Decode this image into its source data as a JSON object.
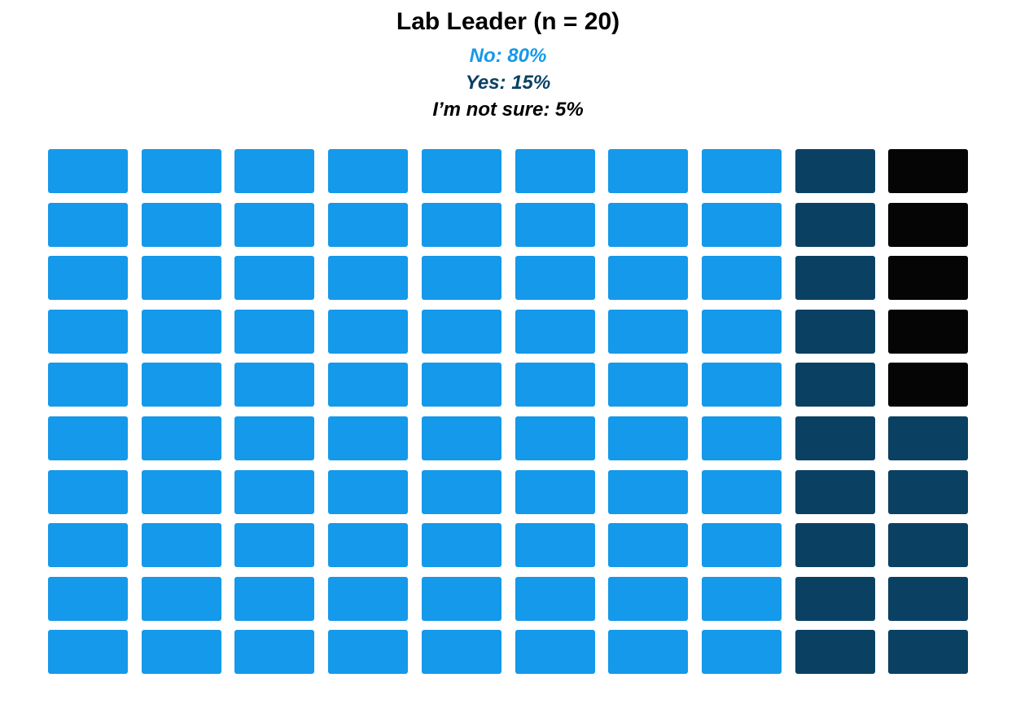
{
  "chart_data": {
    "type": "waffle",
    "title": "Lab Leader (n = 20)",
    "grid": {
      "rows": 10,
      "cols": 10,
      "fill_order": "column-major"
    },
    "series": [
      {
        "name": "No",
        "label": "No: 80%",
        "value": 80,
        "color": "#1599ea"
      },
      {
        "name": "Yes",
        "label": "Yes: 15%",
        "value": 15,
        "color": "#0a4163"
      },
      {
        "name": "I’m not sure",
        "label": "I’m not sure: 5%",
        "value": 5,
        "color": "#050505"
      }
    ]
  }
}
